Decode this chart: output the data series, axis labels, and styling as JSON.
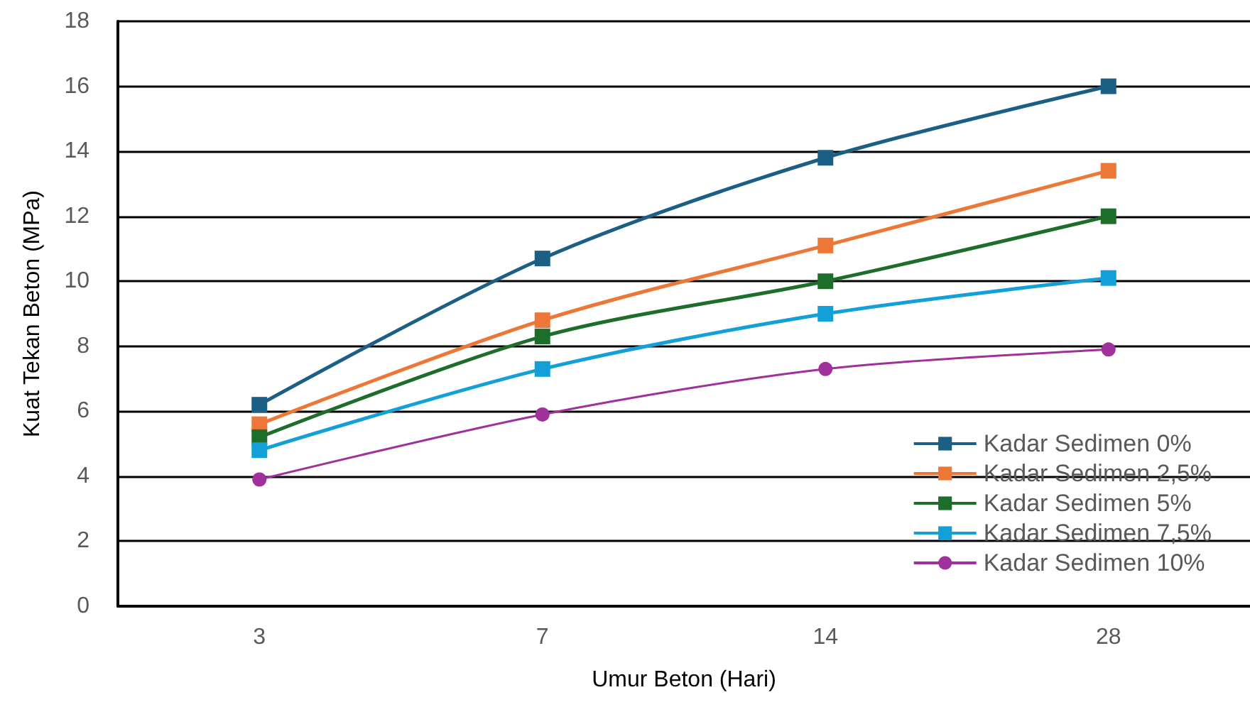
{
  "chart_data": {
    "type": "line",
    "xlabel": "Umur Beton (Hari)",
    "ylabel": "Kuat Tekan Beton (MPa)",
    "categories": [
      "3",
      "7",
      "14",
      "28"
    ],
    "series": [
      {
        "name": "Kadar Sedimen 0%",
        "color": "#1b5f85",
        "marker": "square",
        "values": [
          6.2,
          10.7,
          13.8,
          16.0
        ]
      },
      {
        "name": "Kadar Sedimen 2,5%",
        "color": "#ed7737",
        "marker": "square",
        "values": [
          5.6,
          8.8,
          11.1,
          13.4
        ]
      },
      {
        "name": "Kadar Sedimen 5%",
        "color": "#1c6e2a",
        "marker": "square",
        "values": [
          5.2,
          8.3,
          10.0,
          12.0
        ]
      },
      {
        "name": "Kadar Sedimen 7,5%",
        "color": "#13a0d9",
        "marker": "square",
        "values": [
          4.8,
          7.3,
          9.0,
          10.1
        ]
      },
      {
        "name": "Kadar Sedimen 10%",
        "color": "#a0309a",
        "marker": "circle",
        "values": [
          3.9,
          5.9,
          7.3,
          7.9
        ]
      }
    ],
    "ylim": [
      0,
      18
    ],
    "yticks": [
      0,
      2,
      4,
      6,
      8,
      10,
      12,
      14,
      16,
      18
    ],
    "grid": "y",
    "legend": "bottom right"
  }
}
